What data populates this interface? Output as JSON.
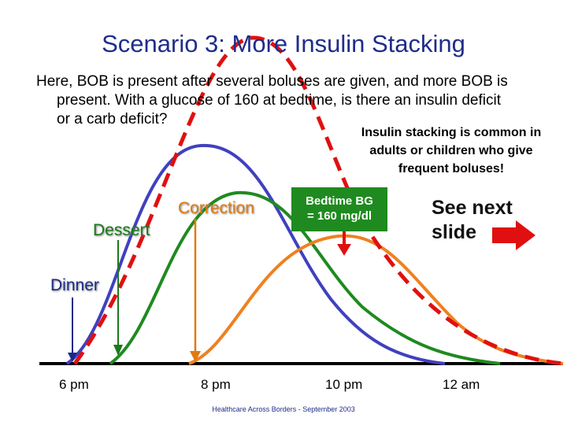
{
  "slide": {
    "title": "Scenario 3: More Insulin Stacking",
    "body_line1": "Here, BOB is present after several boluses are given, and more BOB is",
    "body_line2": "present. With a glucose of 160 at bedtime, is there an insulin deficit",
    "body_line3": "or a carb deficit?",
    "note": "Insulin stacking is common in adults or children who give frequent boluses!",
    "footer": "Healthcare Across Borders  -  September 2003"
  },
  "labels": {
    "correction": "Correction",
    "dessert": "Dessert",
    "dinner": "Dinner",
    "bedtime_line1": "Bedtime BG",
    "bedtime_line2": "= 160 mg/dl",
    "see_next_line1": "See next",
    "see_next_line2": "slide"
  },
  "axis": {
    "ticks": [
      "6 pm",
      "8 pm",
      "10 pm",
      "12 am"
    ]
  },
  "colors": {
    "dinner": "#4040c0",
    "dessert": "#1f8a1f",
    "correction": "#f08020",
    "total": "#e01010",
    "bedtime_box": "#1f8a1f",
    "title": "#1f2d8a"
  }
}
